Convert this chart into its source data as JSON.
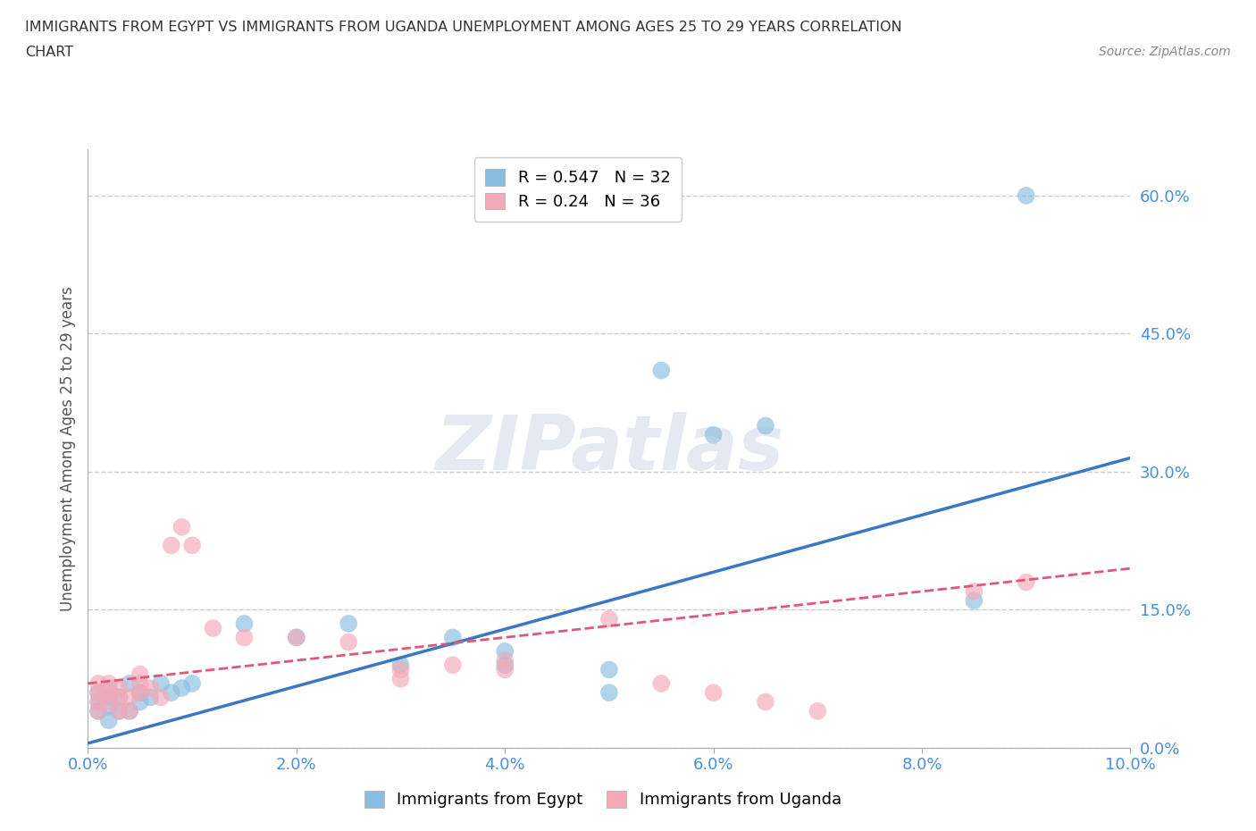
{
  "title_line1": "IMMIGRANTS FROM EGYPT VS IMMIGRANTS FROM UGANDA UNEMPLOYMENT AMONG AGES 25 TO 29 YEARS CORRELATION",
  "title_line2": "CHART",
  "source": "Source: ZipAtlas.com",
  "ylabel": "Unemployment Among Ages 25 to 29 years",
  "xlim": [
    0.0,
    0.1
  ],
  "ylim": [
    0.0,
    0.65
  ],
  "xticks": [
    0.0,
    0.02,
    0.04,
    0.06,
    0.08,
    0.1
  ],
  "yticks": [
    0.0,
    0.15,
    0.3,
    0.45,
    0.6
  ],
  "xticklabels": [
    "0.0%",
    "2.0%",
    "4.0%",
    "6.0%",
    "8.0%",
    "10.0%"
  ],
  "yticklabels": [
    "0.0%",
    "15.0%",
    "30.0%",
    "45.0%",
    "60.0%"
  ],
  "egypt_R": 0.547,
  "egypt_N": 32,
  "uganda_R": 0.24,
  "uganda_N": 36,
  "egypt_color": "#89bde0",
  "uganda_color": "#f4a8b8",
  "egypt_line_color": "#3a78c4",
  "uganda_line_color": "#e05878",
  "watermark": "ZIPatlas",
  "egypt_line_x0": 0.0,
  "egypt_line_y0": 0.005,
  "egypt_line_x1": 0.1,
  "egypt_line_y1": 0.315,
  "uganda_line_x0": 0.0,
  "uganda_line_y0": 0.07,
  "uganda_line_x1": 0.1,
  "uganda_line_y1": 0.195,
  "egypt_scatter_x": [
    0.001,
    0.001,
    0.001,
    0.002,
    0.002,
    0.002,
    0.002,
    0.003,
    0.003,
    0.004,
    0.004,
    0.005,
    0.005,
    0.006,
    0.007,
    0.008,
    0.009,
    0.01,
    0.015,
    0.02,
    0.025,
    0.03,
    0.035,
    0.04,
    0.04,
    0.05,
    0.05,
    0.055,
    0.06,
    0.065,
    0.085,
    0.09
  ],
  "egypt_scatter_y": [
    0.04,
    0.05,
    0.06,
    0.03,
    0.045,
    0.055,
    0.065,
    0.04,
    0.055,
    0.04,
    0.07,
    0.06,
    0.05,
    0.055,
    0.07,
    0.06,
    0.065,
    0.07,
    0.135,
    0.12,
    0.135,
    0.09,
    0.12,
    0.105,
    0.09,
    0.06,
    0.085,
    0.41,
    0.34,
    0.35,
    0.16,
    0.6
  ],
  "uganda_scatter_x": [
    0.001,
    0.001,
    0.001,
    0.001,
    0.002,
    0.002,
    0.002,
    0.003,
    0.003,
    0.003,
    0.004,
    0.004,
    0.005,
    0.005,
    0.005,
    0.006,
    0.007,
    0.008,
    0.009,
    0.01,
    0.012,
    0.015,
    0.02,
    0.025,
    0.03,
    0.03,
    0.035,
    0.04,
    0.04,
    0.05,
    0.055,
    0.06,
    0.065,
    0.07,
    0.085,
    0.09
  ],
  "uganda_scatter_y": [
    0.04,
    0.05,
    0.06,
    0.07,
    0.05,
    0.06,
    0.07,
    0.04,
    0.055,
    0.065,
    0.04,
    0.055,
    0.06,
    0.07,
    0.08,
    0.065,
    0.055,
    0.22,
    0.24,
    0.22,
    0.13,
    0.12,
    0.12,
    0.115,
    0.085,
    0.075,
    0.09,
    0.085,
    0.095,
    0.14,
    0.07,
    0.06,
    0.05,
    0.04,
    0.17,
    0.18
  ]
}
